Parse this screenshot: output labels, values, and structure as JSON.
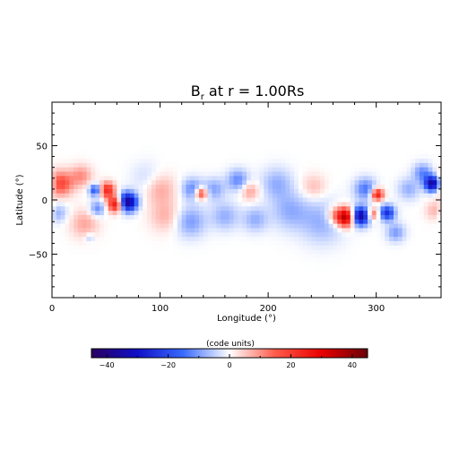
{
  "chart_data": [
    {
      "type": "heatmap",
      "title_main": "B",
      "title_sub": "r",
      "title_rest": " at r = 1.00Rs",
      "xlabel": "Longitude (°)",
      "ylabel": "Latitude (°)",
      "xlim": [
        0,
        360
      ],
      "ylim": [
        -90,
        90
      ],
      "x_ticks": [
        0,
        100,
        200,
        300
      ],
      "y_ticks": [
        -50,
        0,
        50
      ],
      "grid": false,
      "colormap": [
        "#2a0060",
        "#1010c8",
        "#3a6bff",
        "#ffffff",
        "#ff5a4a",
        "#e80000",
        "#6a0008"
      ],
      "color_range": [
        -45,
        45
      ],
      "features": [
        {
          "lon": 8,
          "lat": 15,
          "value": 18,
          "spread": 8
        },
        {
          "lon": 27,
          "lat": 22,
          "value": 10,
          "spread": 7
        },
        {
          "lon": 5,
          "lat": -12,
          "value": -9,
          "spread": 6
        },
        {
          "lon": 40,
          "lat": 9,
          "value": -20,
          "spread": 4
        },
        {
          "lon": 51,
          "lat": 9,
          "value": 24,
          "spread": 5
        },
        {
          "lon": 59,
          "lat": -4,
          "value": 30,
          "spread": 5
        },
        {
          "lon": 70,
          "lat": -2,
          "value": -40,
          "spread": 6
        },
        {
          "lon": 42,
          "lat": -8,
          "value": -12,
          "spread": 5
        },
        {
          "lon": 30,
          "lat": -22,
          "value": 8,
          "spread": 9
        },
        {
          "lon": 35,
          "lat": -35,
          "value": -6,
          "spread": 3
        },
        {
          "lon": 100,
          "lat": 10,
          "value": 8,
          "spread": 10
        },
        {
          "lon": 105,
          "lat": -15,
          "value": 7,
          "spread": 10
        },
        {
          "lon": 88,
          "lat": 20,
          "value": -4,
          "spread": 10
        },
        {
          "lon": 130,
          "lat": 10,
          "value": -12,
          "spread": 7
        },
        {
          "lon": 138,
          "lat": 6,
          "value": 22,
          "spread": 4
        },
        {
          "lon": 150,
          "lat": 10,
          "value": -9,
          "spread": 7
        },
        {
          "lon": 128,
          "lat": -20,
          "value": -10,
          "spread": 10
        },
        {
          "lon": 160,
          "lat": -15,
          "value": -8,
          "spread": 9
        },
        {
          "lon": 172,
          "lat": 18,
          "value": -12,
          "spread": 7
        },
        {
          "lon": 183,
          "lat": 8,
          "value": 9,
          "spread": 6
        },
        {
          "lon": 188,
          "lat": -18,
          "value": -8,
          "spread": 8
        },
        {
          "lon": 208,
          "lat": 15,
          "value": -8,
          "spread": 10
        },
        {
          "lon": 220,
          "lat": -10,
          "value": -8,
          "spread": 12
        },
        {
          "lon": 250,
          "lat": -20,
          "value": -8,
          "spread": 14
        },
        {
          "lon": 242,
          "lat": 12,
          "value": 6,
          "spread": 8
        },
        {
          "lon": 262,
          "lat": -14,
          "value": 10,
          "spread": 6
        },
        {
          "lon": 272,
          "lat": -16,
          "value": 38,
          "spread": 6
        },
        {
          "lon": 285,
          "lat": -15,
          "value": -38,
          "spread": 6
        },
        {
          "lon": 297,
          "lat": -13,
          "value": 16,
          "spread": 4
        },
        {
          "lon": 290,
          "lat": 10,
          "value": -14,
          "spread": 7
        },
        {
          "lon": 301,
          "lat": 5,
          "value": 27,
          "spread": 4
        },
        {
          "lon": 310,
          "lat": -12,
          "value": -25,
          "spread": 5
        },
        {
          "lon": 318,
          "lat": -30,
          "value": -10,
          "spread": 6
        },
        {
          "lon": 330,
          "lat": 10,
          "value": -8,
          "spread": 7
        },
        {
          "lon": 343,
          "lat": 25,
          "value": -12,
          "spread": 6
        },
        {
          "lon": 352,
          "lat": 15,
          "value": -38,
          "spread": 5
        },
        {
          "lon": 355,
          "lat": -10,
          "value": 8,
          "spread": 6
        }
      ],
      "colorbar": {
        "label": "(code units)",
        "range": [
          -45,
          45
        ],
        "ticks": [
          {
            "value": -40,
            "label": "−40"
          },
          {
            "value": -20,
            "label": "−20"
          },
          {
            "value": 0,
            "label": "0"
          },
          {
            "value": 20,
            "label": "20"
          },
          {
            "value": 40,
            "label": "40"
          }
        ]
      }
    }
  ]
}
